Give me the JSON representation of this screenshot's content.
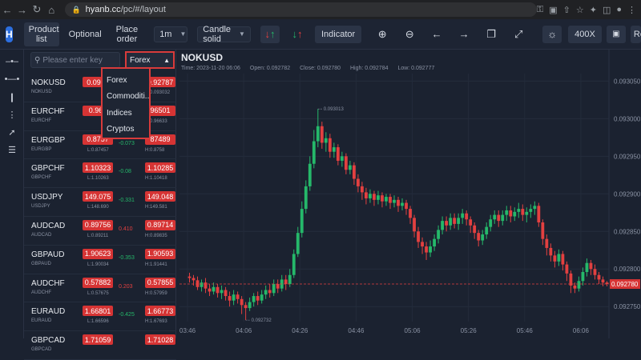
{
  "browser": {
    "url_host": "hyanb.cc",
    "url_path": "/pc/#/layout"
  },
  "toolbar": {
    "product_list": "Product list",
    "optional": "Optional",
    "place_order": "Place order",
    "timeframe": "1m",
    "chart_style": "Candle solid",
    "indicator": "Indicator",
    "zoom": "400X",
    "cutoff_label": "Re"
  },
  "panel": {
    "search_placeholder": "Please enter key",
    "category_selected": "Forex",
    "category_options": [
      "Forex",
      "Commoditi...",
      "Indices",
      "Cryptos"
    ]
  },
  "instruments": [
    {
      "symbol": "NOKUSD",
      "sub": "NOKUSD",
      "bid": "0.0928",
      "ask": "0.92787",
      "low": "",
      "high": "H:0.093032",
      "change": "",
      "change_color": "#25b86a"
    },
    {
      "symbol": "EURCHF",
      "sub": "EURCHF",
      "bid": "0.965",
      "ask": "96501",
      "low": "",
      "high": "H:0.96633",
      "change": "",
      "change_color": "#25b86a"
    },
    {
      "symbol": "EURGBP",
      "sub": "EURGBP",
      "bid": "0.8757",
      "ask": "87489",
      "low": "L:0.87457",
      "high": "H:0.8758",
      "change": "-0.073",
      "change_color": "#25b86a"
    },
    {
      "symbol": "GBPCHF",
      "sub": "GBPCHF",
      "bid": "1.10323",
      "ask": "1.10285",
      "low": "L:1.10263",
      "high": "H:1.10418",
      "change": "-0.08",
      "change_color": "#25b86a"
    },
    {
      "symbol": "USDJPY",
      "sub": "USDJPY",
      "bid": "149.075",
      "ask": "149.048",
      "low": "L:148.690",
      "high": "H:149.581",
      "change": "-0.331",
      "change_color": "#25b86a"
    },
    {
      "symbol": "AUDCAD",
      "sub": "AUDCAD",
      "bid": "0.89756",
      "ask": "0.89714",
      "low": "L:0.89211",
      "high": "H:0.89835",
      "change": "0.410",
      "change_color": "#e34040"
    },
    {
      "symbol": "GBPAUD",
      "sub": "GBPAUD",
      "bid": "1.90623",
      "ask": "1.90593",
      "low": "L:1.90034",
      "high": "H:1.91441",
      "change": "-0.353",
      "change_color": "#25b86a"
    },
    {
      "symbol": "AUDCHF",
      "sub": "AUDCHF",
      "bid": "0.57882",
      "ask": "0.57855",
      "low": "L:0.57675",
      "high": "H:0.57959",
      "change": "0.203",
      "change_color": "#e34040"
    },
    {
      "symbol": "EURAUD",
      "sub": "EURAUD",
      "bid": "1.66801",
      "ask": "1.66773",
      "low": "L:1.66596",
      "high": "H:1.67693",
      "change": "-0.425",
      "change_color": "#25b86a"
    },
    {
      "symbol": "GBPCAD",
      "sub": "GBPCAD",
      "bid": "1.71059",
      "ask": "1.71028",
      "low": "",
      "high": "",
      "change": "",
      "change_color": "#25b86a"
    }
  ],
  "chart_header": {
    "symbol": "NOKUSD",
    "time": "Time: 2023-11-20 06:06",
    "open": "Open: 0.092782",
    "close": "Close: 0.092780",
    "high": "High: 0.092784",
    "low": "Low: 0.092777"
  },
  "chart_data": {
    "type": "candlestick",
    "y_ticks": [
      "0.093050",
      "0.093000",
      "0.092950",
      "0.092900",
      "0.092850",
      "0.092800",
      "0.092750"
    ],
    "x_ticks": [
      "03:46",
      "04:06",
      "04:26",
      "04:46",
      "05:06",
      "05:26",
      "05:46",
      "06:06"
    ],
    "ylim": [
      0.09273,
      0.09306
    ],
    "annotations": {
      "high_label": "0.093013",
      "low_label": "0.092732",
      "last_price": "0.092780"
    },
    "last_price_value": 0.09278,
    "candles": [
      [
        0.09279,
        0.092788,
        0.092795,
        0.092782
      ],
      [
        0.092788,
        0.092785,
        0.092792,
        0.092778
      ],
      [
        0.092785,
        0.092776,
        0.09279,
        0.092772
      ],
      [
        0.092776,
        0.092782,
        0.092786,
        0.09277
      ],
      [
        0.092782,
        0.092774,
        0.092788,
        0.092768
      ],
      [
        0.092774,
        0.09277,
        0.09278,
        0.092764
      ],
      [
        0.09277,
        0.092776,
        0.092782,
        0.092766
      ],
      [
        0.092776,
        0.092768,
        0.09278,
        0.092762
      ],
      [
        0.092768,
        0.092772,
        0.092778,
        0.09276
      ],
      [
        0.092772,
        0.092764,
        0.092776,
        0.092758
      ],
      [
        0.092764,
        0.092758,
        0.09277,
        0.09275
      ],
      [
        0.092758,
        0.092766,
        0.092772,
        0.092752
      ],
      [
        0.092766,
        0.09276,
        0.09277,
        0.092754
      ],
      [
        0.09276,
        0.092752,
        0.092764,
        0.09274
      ],
      [
        0.092752,
        0.092748,
        0.092756,
        0.092732
      ],
      [
        0.092748,
        0.092756,
        0.092762,
        0.092744
      ],
      [
        0.092756,
        0.092764,
        0.092768,
        0.09275
      ],
      [
        0.092764,
        0.092758,
        0.09277,
        0.092752
      ],
      [
        0.092758,
        0.092766,
        0.092772,
        0.092754
      ],
      [
        0.092766,
        0.092772,
        0.092778,
        0.09276
      ],
      [
        0.092772,
        0.092768,
        0.09278,
        0.092762
      ],
      [
        0.092768,
        0.09278,
        0.092786,
        0.092764
      ],
      [
        0.09278,
        0.092774,
        0.092786,
        0.092768
      ],
      [
        0.092774,
        0.092786,
        0.092792,
        0.09277
      ],
      [
        0.092786,
        0.09278,
        0.092792,
        0.092772
      ],
      [
        0.09278,
        0.092792,
        0.0928,
        0.092776
      ],
      [
        0.092792,
        0.09282,
        0.092826,
        0.092788
      ],
      [
        0.09282,
        0.092848,
        0.092856,
        0.092816
      ],
      [
        0.092848,
        0.09288,
        0.09289,
        0.092842
      ],
      [
        0.09288,
        0.09291,
        0.092918,
        0.092874
      ],
      [
        0.09291,
        0.09294,
        0.09295,
        0.092904
      ],
      [
        0.09294,
        0.09297,
        0.092985,
        0.092934
      ],
      [
        0.09297,
        0.09299,
        0.093013,
        0.092962
      ],
      [
        0.09299,
        0.092968,
        0.092996,
        0.09296
      ],
      [
        0.092968,
        0.092974,
        0.092982,
        0.092956
      ],
      [
        0.092974,
        0.092956,
        0.09298,
        0.092948
      ],
      [
        0.092956,
        0.092962,
        0.092968,
        0.092948
      ],
      [
        0.092962,
        0.092944,
        0.092966,
        0.092938
      ],
      [
        0.092944,
        0.09295,
        0.092956,
        0.092936
      ],
      [
        0.09295,
        0.092932,
        0.092954,
        0.092926
      ],
      [
        0.092932,
        0.092938,
        0.092944,
        0.092926
      ],
      [
        0.092938,
        0.09292,
        0.092942,
        0.092912
      ],
      [
        0.09292,
        0.09291,
        0.092926,
        0.092902
      ],
      [
        0.09291,
        0.092902,
        0.092916,
        0.092892
      ],
      [
        0.092902,
        0.092894,
        0.092908,
        0.092886
      ],
      [
        0.092894,
        0.0929,
        0.092906,
        0.092888
      ],
      [
        0.0929,
        0.092892,
        0.092904,
        0.092884
      ],
      [
        0.092892,
        0.092898,
        0.092904,
        0.092886
      ],
      [
        0.092898,
        0.09289,
        0.092902,
        0.092882
      ],
      [
        0.09289,
        0.092896,
        0.0929,
        0.092884
      ],
      [
        0.092896,
        0.092888,
        0.0929,
        0.09288
      ],
      [
        0.092888,
        0.092892,
        0.092898,
        0.092882
      ],
      [
        0.092892,
        0.092884,
        0.092896,
        0.092876
      ],
      [
        0.092884,
        0.092888,
        0.092894,
        0.092878
      ],
      [
        0.092888,
        0.09288,
        0.092892,
        0.092872
      ],
      [
        0.09288,
        0.092868,
        0.092884,
        0.09286
      ],
      [
        0.092868,
        0.09285,
        0.092872,
        0.092842
      ],
      [
        0.09285,
        0.092836,
        0.092856,
        0.092828
      ],
      [
        0.092836,
        0.09283,
        0.092842,
        0.09282
      ],
      [
        0.09283,
        0.092822,
        0.092836,
        0.092812
      ],
      [
        0.092822,
        0.09283,
        0.092838,
        0.092816
      ],
      [
        0.09283,
        0.09284,
        0.092846,
        0.092824
      ],
      [
        0.09284,
        0.092852,
        0.092858,
        0.092834
      ],
      [
        0.092852,
        0.092864,
        0.09287,
        0.092846
      ],
      [
        0.092864,
        0.092858,
        0.09287,
        0.09285
      ],
      [
        0.092858,
        0.092868,
        0.092874,
        0.092852
      ],
      [
        0.092868,
        0.09286,
        0.092874,
        0.092854
      ],
      [
        0.09286,
        0.092868,
        0.092874,
        0.092852
      ],
      [
        0.092868,
        0.092874,
        0.09288,
        0.09286
      ],
      [
        0.092874,
        0.092866,
        0.092878,
        0.092858
      ],
      [
        0.092866,
        0.092858,
        0.09287,
        0.092848
      ],
      [
        0.092858,
        0.092848,
        0.092862,
        0.09284
      ],
      [
        0.092848,
        0.092838,
        0.092852,
        0.09283
      ],
      [
        0.092838,
        0.092846,
        0.092852,
        0.092832
      ],
      [
        0.092846,
        0.092856,
        0.092862,
        0.09284
      ],
      [
        0.092856,
        0.092866,
        0.092872,
        0.09285
      ],
      [
        0.092866,
        0.092872,
        0.092878,
        0.09286
      ],
      [
        0.092872,
        0.092864,
        0.092878,
        0.092856
      ],
      [
        0.092864,
        0.092872,
        0.092878,
        0.092858
      ],
      [
        0.092872,
        0.092878,
        0.092884,
        0.092864
      ],
      [
        0.092878,
        0.09287,
        0.092884,
        0.092862
      ],
      [
        0.09287,
        0.092876,
        0.092882,
        0.092864
      ],
      [
        0.092876,
        0.09288,
        0.092888,
        0.092868
      ],
      [
        0.09288,
        0.092872,
        0.092886,
        0.092864
      ],
      [
        0.092872,
        0.092876,
        0.092882,
        0.092862
      ],
      [
        0.092876,
        0.09288,
        0.092886,
        0.092868
      ],
      [
        0.09288,
        0.092884,
        0.09289,
        0.092872
      ],
      [
        0.092884,
        0.092862,
        0.092888,
        0.092856
      ],
      [
        0.092862,
        0.09284,
        0.092866,
        0.092832
      ],
      [
        0.09284,
        0.092828,
        0.092846,
        0.092818
      ],
      [
        0.092828,
        0.092818,
        0.092834,
        0.09281
      ],
      [
        0.092818,
        0.09281,
        0.092824,
        0.092802
      ],
      [
        0.09281,
        0.09282,
        0.092826,
        0.092804
      ],
      [
        0.09282,
        0.092806,
        0.092824,
        0.092798
      ],
      [
        0.092806,
        0.092794,
        0.09281,
        0.092784
      ],
      [
        0.092794,
        0.092778,
        0.092798,
        0.092768
      ],
      [
        0.092778,
        0.092774,
        0.092782,
        0.092768
      ],
      [
        0.092774,
        0.092784,
        0.09279,
        0.09277
      ],
      [
        0.092784,
        0.092796,
        0.092802,
        0.092778
      ],
      [
        0.092796,
        0.092808,
        0.092814,
        0.09279
      ],
      [
        0.092808,
        0.0928,
        0.092812,
        0.092792
      ],
      [
        0.0928,
        0.092792,
        0.092806,
        0.092786
      ],
      [
        0.092792,
        0.092786,
        0.092796,
        0.09278
      ],
      [
        0.092786,
        0.092782,
        0.09279,
        0.092777
      ],
      [
        0.092782,
        0.09278,
        0.092784,
        0.092777
      ]
    ]
  }
}
